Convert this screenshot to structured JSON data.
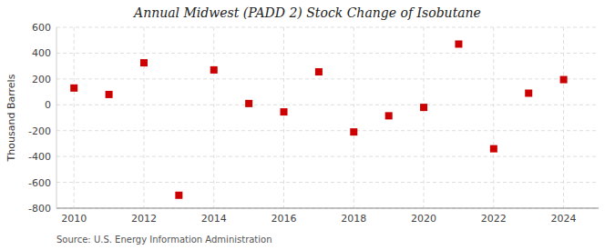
{
  "chart_data": {
    "type": "scatter",
    "title": "Annual Midwest (PADD 2) Stock Change of Isobutane",
    "ylabel": "Thousand Barrels",
    "source": "Source: U.S. Energy Information Administration",
    "x": [
      2010,
      2011,
      2012,
      2013,
      2014,
      2015,
      2016,
      2017,
      2018,
      2019,
      2020,
      2021,
      2022,
      2023,
      2024
    ],
    "values": [
      130,
      80,
      325,
      -700,
      270,
      10,
      -55,
      255,
      -210,
      -85,
      -20,
      470,
      -340,
      90,
      195
    ],
    "color": "#CC0000",
    "marker": "square",
    "xlim": [
      2009.5,
      2025.0
    ],
    "xticks": [
      2010,
      2012,
      2014,
      2016,
      2018,
      2020,
      2022,
      2024
    ],
    "ylim": [
      -800,
      600
    ],
    "yticks": [
      -800,
      -600,
      -400,
      -200,
      0,
      200,
      400,
      600
    ],
    "grid": true
  }
}
